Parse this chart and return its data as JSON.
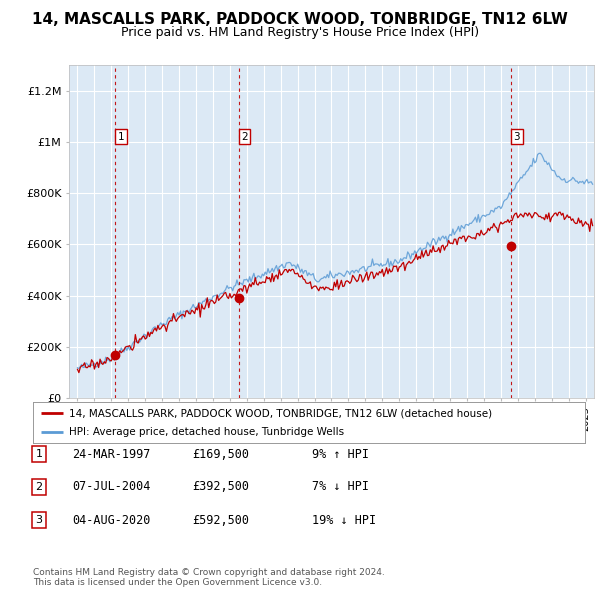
{
  "title": "14, MASCALLS PARK, PADDOCK WOOD, TONBRIDGE, TN12 6LW",
  "subtitle": "Price paid vs. HM Land Registry's House Price Index (HPI)",
  "title_fontsize": 11,
  "subtitle_fontsize": 9,
  "background_color": "#ffffff",
  "plot_bg_color": "#dce9f5",
  "grid_color": "#ffffff",
  "ylim": [
    0,
    1300000
  ],
  "yticks": [
    0,
    200000,
    400000,
    600000,
    800000,
    1000000,
    1200000
  ],
  "ytick_labels": [
    "£0",
    "£200K",
    "£400K",
    "£600K",
    "£800K",
    "£1M",
    "£1.2M"
  ],
  "xlim_start": 1994.5,
  "xlim_end": 2025.5,
  "sale_dates": [
    1997.23,
    2004.52,
    2020.59
  ],
  "sale_prices": [
    169500,
    392500,
    592500
  ],
  "sale_labels": [
    "1",
    "2",
    "3"
  ],
  "hpi_line_color": "#5b9bd5",
  "price_line_color": "#c00000",
  "sale_dot_color": "#c00000",
  "vline_color": "#c00000",
  "legend_entries": [
    "14, MASCALLS PARK, PADDOCK WOOD, TONBRIDGE, TN12 6LW (detached house)",
    "HPI: Average price, detached house, Tunbridge Wells"
  ],
  "table_data": [
    [
      "1",
      "24-MAR-1997",
      "£169,500",
      "9% ↑ HPI"
    ],
    [
      "2",
      "07-JUL-2004",
      "£392,500",
      "7% ↓ HPI"
    ],
    [
      "3",
      "04-AUG-2020",
      "£592,500",
      "19% ↓ HPI"
    ]
  ],
  "footer": "Contains HM Land Registry data © Crown copyright and database right 2024.\nThis data is licensed under the Open Government Licence v3.0."
}
